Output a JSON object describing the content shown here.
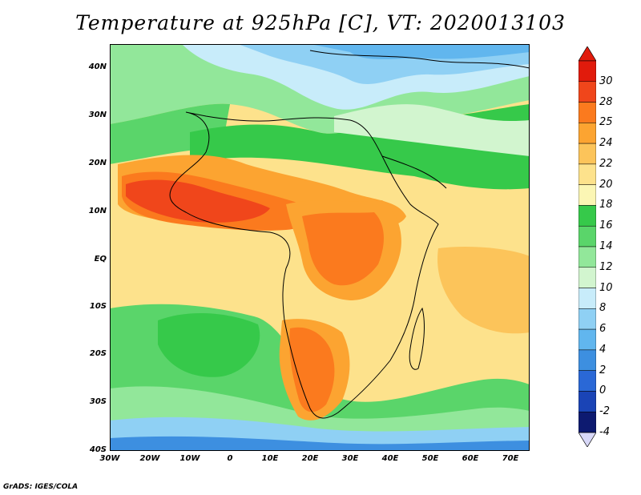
{
  "title": "Temperature at 925hPa [C], VT: 2020013103",
  "credit": "GrADS: IGES/COLA",
  "map": {
    "projection": "lat-lon",
    "lon_range": [
      -30,
      75
    ],
    "lat_range": [
      -40,
      45
    ],
    "lat_ticks": [
      "40N",
      "30N",
      "20N",
      "10N",
      "EQ",
      "10S",
      "20S",
      "30S",
      "40S"
    ],
    "lon_ticks": [
      "30W",
      "20W",
      "10W",
      "0",
      "10E",
      "20E",
      "30E",
      "40E",
      "50E",
      "60E",
      "70E"
    ],
    "field": "air temperature at 925 hPa",
    "units": "C"
  },
  "colorbar": {
    "labels": [
      "30",
      "28",
      "25",
      "24",
      "22",
      "20",
      "18",
      "16",
      "14",
      "12",
      "10",
      "8",
      "6",
      "4",
      "2",
      "0",
      "-2",
      "-4"
    ],
    "colors": [
      "#e11b0c",
      "#f0461b",
      "#fb7a1e",
      "#fca431",
      "#fcc45a",
      "#fde28c",
      "#fbf6b4",
      "#36c94a",
      "#5ad56a",
      "#92e79a",
      "#d2f5cf",
      "#c8ecfa",
      "#8fd0f4",
      "#61b6ee",
      "#3d8fe0",
      "#2a68d6",
      "#1a44b6",
      "#0d1a70"
    ]
  }
}
